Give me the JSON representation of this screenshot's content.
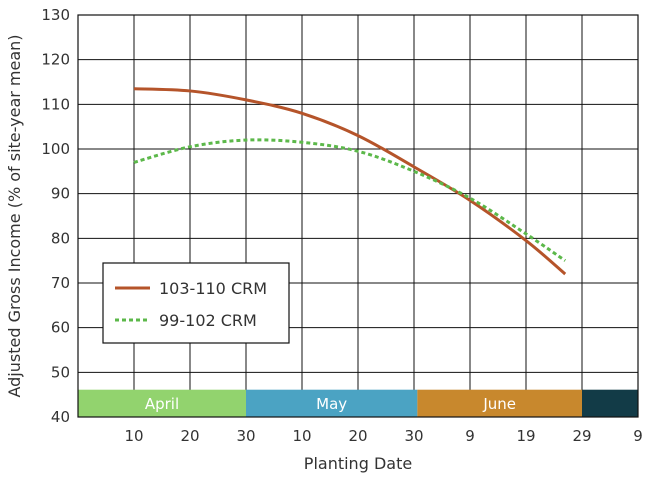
{
  "chart_data": {
    "type": "line",
    "xlabel": "Planting Date",
    "ylabel": "Adjusted Gross Income (% of site-year mean)",
    "ylim": [
      40,
      130
    ],
    "yticks": [
      40,
      50,
      60,
      70,
      80,
      90,
      100,
      110,
      120,
      130
    ],
    "x_tick_labels": [
      "10",
      "20",
      "30",
      "10",
      "20",
      "30",
      "9",
      "19",
      "29",
      "9"
    ],
    "grid": true,
    "legend_position": "lower-left",
    "months": [
      {
        "label": "April",
        "color": "#92d36e"
      },
      {
        "label": "May",
        "color": "#4ba3c3"
      },
      {
        "label": "June",
        "color": "#c8882d"
      },
      {
        "label": "",
        "color": "#123b47"
      }
    ],
    "series": [
      {
        "name": "103-110 CRM",
        "color": "#b5542a",
        "style": "solid",
        "x": [
          "Apr 10",
          "Apr 20",
          "Apr 30",
          "May 10",
          "May 20",
          "May 30",
          "Jun 9",
          "Jun 19",
          "Jun 26"
        ],
        "values": [
          113.5,
          113,
          111,
          108,
          103,
          96,
          88.5,
          79.5,
          72
        ]
      },
      {
        "name": "99-102 CRM",
        "color": "#5cb84a",
        "style": "dashed",
        "x": [
          "Apr 10",
          "Apr 20",
          "Apr 30",
          "May 10",
          "May 20",
          "May 30",
          "Jun 9",
          "Jun 19",
          "Jun 26"
        ],
        "values": [
          97,
          100.5,
          102,
          101.5,
          99.5,
          95,
          89,
          81,
          75
        ]
      }
    ]
  }
}
